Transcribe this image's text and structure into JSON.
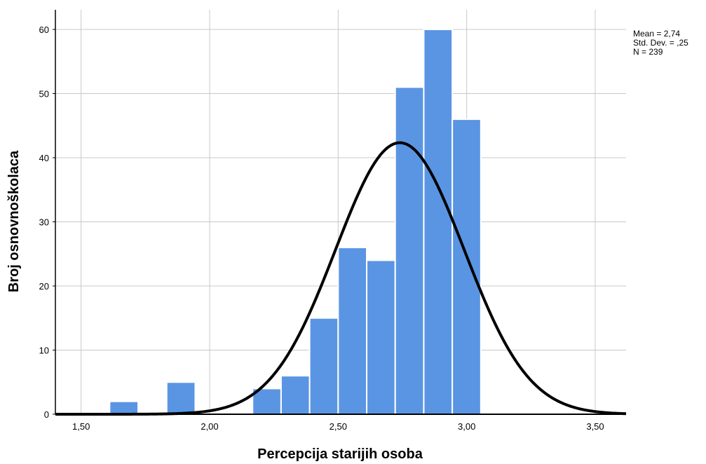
{
  "chart_data": {
    "type": "bar",
    "subtype": "histogram",
    "xlabel": "Percepcija starijih osoba",
    "ylabel": "Broj osnovnoškolaca",
    "xlim": [
      1.4,
      3.62
    ],
    "ylim": [
      0,
      60
    ],
    "x_ticks": [
      {
        "value": 1.5,
        "label": "1,50"
      },
      {
        "value": 2.0,
        "label": "2,00"
      },
      {
        "value": 2.5,
        "label": "2,50"
      },
      {
        "value": 3.0,
        "label": "3,00"
      },
      {
        "value": 3.5,
        "label": "3,50"
      }
    ],
    "y_ticks": [
      {
        "value": 0,
        "label": "0"
      },
      {
        "value": 10,
        "label": "10"
      },
      {
        "value": 20,
        "label": "20"
      },
      {
        "value": 30,
        "label": "30"
      },
      {
        "value": 40,
        "label": "40"
      },
      {
        "value": 50,
        "label": "50"
      },
      {
        "value": 60,
        "label": "60"
      }
    ],
    "bin_width": 0.111,
    "bins": [
      {
        "start": 1.611,
        "value": 2
      },
      {
        "start": 1.833,
        "value": 5
      },
      {
        "start": 2.167,
        "value": 4
      },
      {
        "start": 2.278,
        "value": 6
      },
      {
        "start": 2.389,
        "value": 15
      },
      {
        "start": 2.5,
        "value": 26
      },
      {
        "start": 2.611,
        "value": 24
      },
      {
        "start": 2.722,
        "value": 51
      },
      {
        "start": 2.833,
        "value": 60
      },
      {
        "start": 2.944,
        "value": 46
      }
    ],
    "normal_curve": {
      "mean": 2.74,
      "sd": 0.25,
      "n": 239
    },
    "grid": true,
    "bar_color": "#5a95e3",
    "curve_color": "#000000",
    "stats_box": [
      "Mean = 2,74",
      "Std. Dev. = ,25",
      "N = 239"
    ],
    "legend_position": "top-right"
  }
}
